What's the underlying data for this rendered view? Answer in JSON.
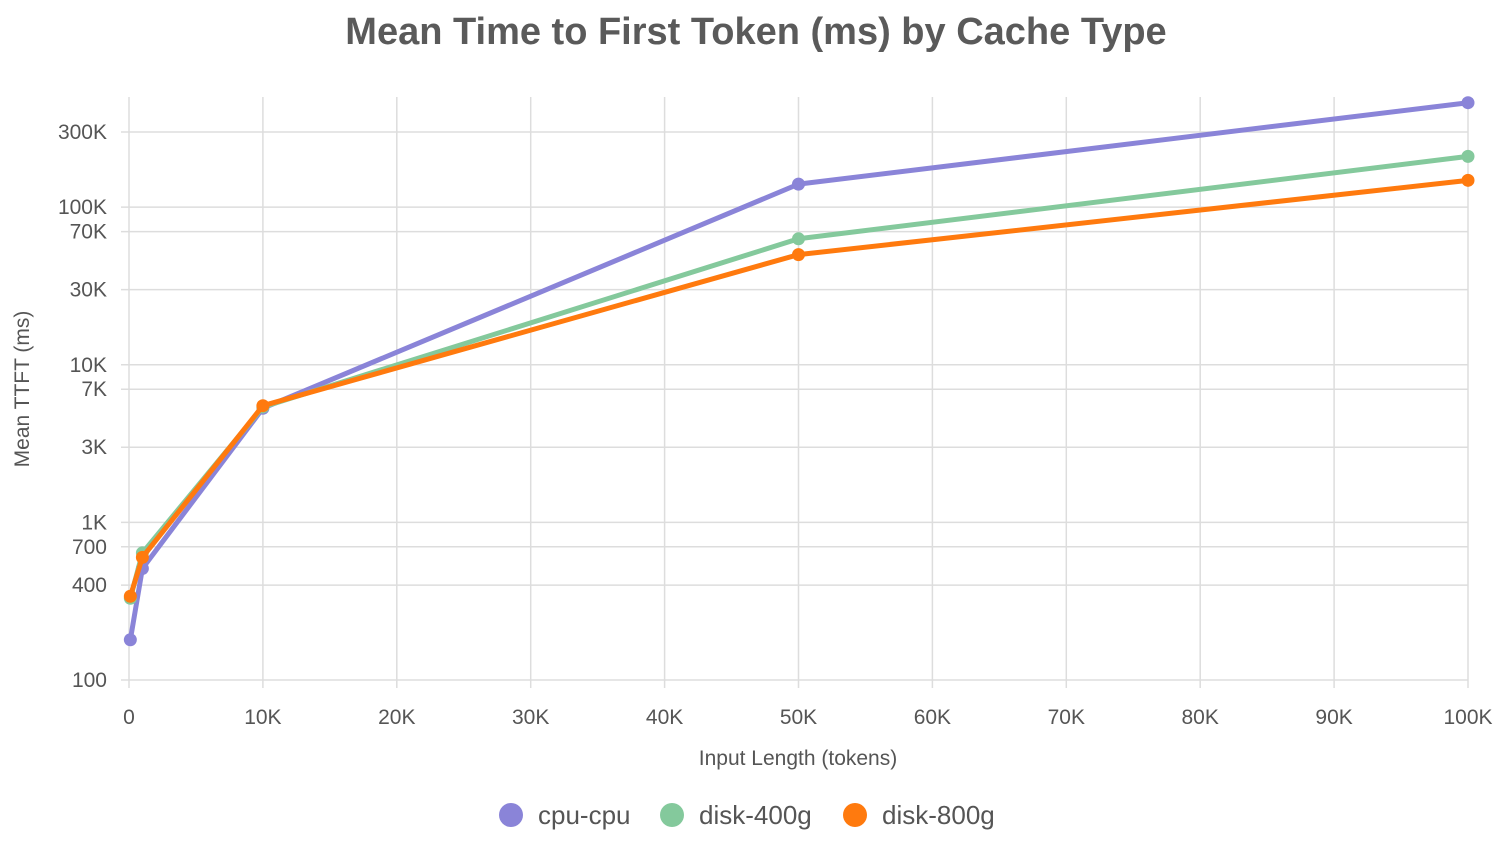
{
  "chart_data": {
    "type": "line",
    "title": "Mean Time to First Token (ms) by Cache Type",
    "xlabel": "Input Length (tokens)",
    "ylabel": "Mean TTFT (ms)",
    "x_scale": "linear",
    "y_scale": "log",
    "xlim": [
      0,
      100000
    ],
    "ylim": [
      100,
      500000
    ],
    "x_ticks": [
      {
        "value": 0,
        "label": "0"
      },
      {
        "value": 10000,
        "label": "10K"
      },
      {
        "value": 20000,
        "label": "20K"
      },
      {
        "value": 30000,
        "label": "30K"
      },
      {
        "value": 40000,
        "label": "40K"
      },
      {
        "value": 50000,
        "label": "50K"
      },
      {
        "value": 60000,
        "label": "60K"
      },
      {
        "value": 70000,
        "label": "70K"
      },
      {
        "value": 80000,
        "label": "80K"
      },
      {
        "value": 90000,
        "label": "90K"
      },
      {
        "value": 100000,
        "label": "100K"
      }
    ],
    "y_ticks": [
      {
        "value": 100,
        "label": "100"
      },
      {
        "value": 400,
        "label": "400"
      },
      {
        "value": 700,
        "label": "700"
      },
      {
        "value": 1000,
        "label": "1K"
      },
      {
        "value": 3000,
        "label": "3K"
      },
      {
        "value": 7000,
        "label": "7K"
      },
      {
        "value": 10000,
        "label": "10K"
      },
      {
        "value": 30000,
        "label": "30K"
      },
      {
        "value": 70000,
        "label": "70K"
      },
      {
        "value": 100000,
        "label": "100K"
      },
      {
        "value": 300000,
        "label": "300K"
      }
    ],
    "grid": true,
    "legend_position": "bottom-center",
    "series": [
      {
        "name": "cpu-cpu",
        "color": "#8a84d8",
        "points": [
          {
            "x": 100,
            "y": 180
          },
          {
            "x": 1000,
            "y": 510
          },
          {
            "x": 10000,
            "y": 5300
          },
          {
            "x": 50000,
            "y": 140000
          },
          {
            "x": 100000,
            "y": 460000
          }
        ]
      },
      {
        "name": "disk-400g",
        "color": "#84c99c",
        "points": [
          {
            "x": 100,
            "y": 330
          },
          {
            "x": 1000,
            "y": 640
          },
          {
            "x": 10000,
            "y": 5400
          },
          {
            "x": 50000,
            "y": 63000
          },
          {
            "x": 100000,
            "y": 210000
          }
        ]
      },
      {
        "name": "disk-800g",
        "color": "#ff7a0e",
        "points": [
          {
            "x": 100,
            "y": 340
          },
          {
            "x": 1000,
            "y": 600
          },
          {
            "x": 10000,
            "y": 5500
          },
          {
            "x": 50000,
            "y": 50000
          },
          {
            "x": 100000,
            "y": 148000
          }
        ]
      }
    ]
  }
}
